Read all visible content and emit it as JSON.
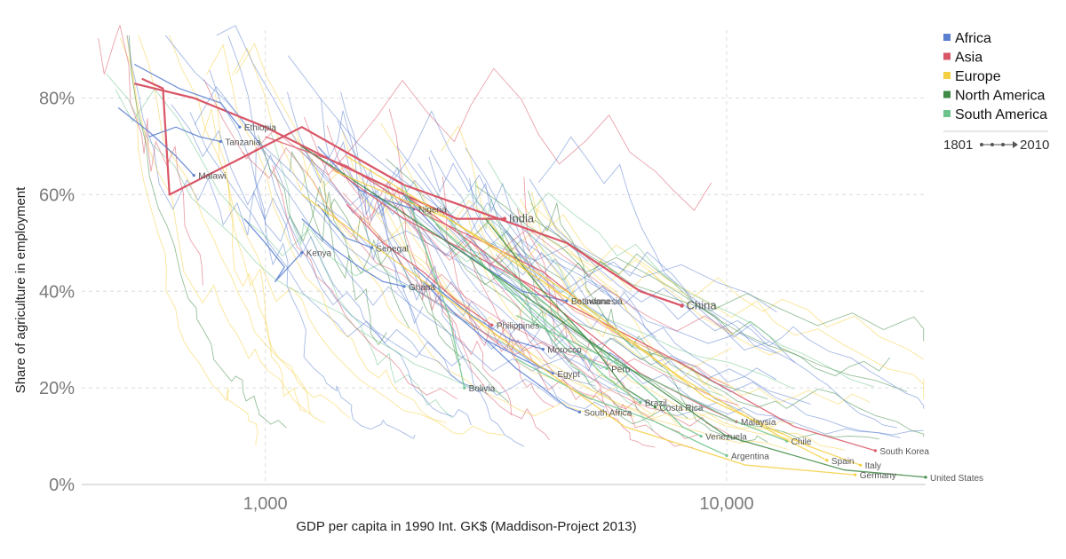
{
  "chart_data": {
    "type": "line",
    "xlabel": "GDP per capita in 1990 Int. GK$ (Maddison-Project 2013)",
    "ylabel": "Share of agriculture in employment",
    "xscale": "log",
    "xlim": [
      400,
      27000
    ],
    "ylim": [
      0,
      0.97
    ],
    "grid": true,
    "x_ticks": [
      {
        "value": 1000,
        "label": "1,000"
      },
      {
        "value": 10000,
        "label": "10,000"
      }
    ],
    "y_ticks": [
      {
        "value": 0,
        "label": "0%"
      },
      {
        "value": 0.2,
        "label": "20%"
      },
      {
        "value": 0.4,
        "label": "40%"
      },
      {
        "value": 0.6,
        "label": "60%"
      },
      {
        "value": 0.8,
        "label": "80%"
      }
    ],
    "legend_position": "top-right",
    "legend": [
      {
        "name": "Africa",
        "color": "#5b7fcf"
      },
      {
        "name": "Asia",
        "color": "#d95667"
      },
      {
        "name": "Europe",
        "color": "#f5cf42"
      },
      {
        "name": "North America",
        "color": "#3f8a45"
      },
      {
        "name": "South America",
        "color": "#6cc48c"
      }
    ],
    "time_range": {
      "start": "1801",
      "end": "2010"
    },
    "series": [
      {
        "name": "India",
        "region": "Asia",
        "x": [
          520,
          700,
          1000,
          1400,
          2000,
          2600,
          3300
        ],
        "y": [
          0.83,
          0.8,
          0.74,
          0.67,
          0.6,
          0.55,
          0.55
        ]
      },
      {
        "name": "China",
        "region": "Asia",
        "x": [
          540,
          600,
          620,
          1200,
          2000,
          4500,
          6500,
          8000
        ],
        "y": [
          0.84,
          0.82,
          0.6,
          0.74,
          0.62,
          0.5,
          0.4,
          0.37
        ]
      },
      {
        "name": "Tanzania",
        "region": "Africa",
        "x": [
          560,
          640,
          720,
          800
        ],
        "y": [
          0.72,
          0.74,
          0.72,
          0.71
        ]
      },
      {
        "name": "Malawi",
        "region": "Africa",
        "x": [
          480,
          560,
          640,
          700
        ],
        "y": [
          0.78,
          0.73,
          0.68,
          0.64
        ]
      },
      {
        "name": "Ethiopia",
        "region": "Africa",
        "x": [
          520,
          650,
          800,
          880
        ],
        "y": [
          0.87,
          0.82,
          0.79,
          0.74
        ]
      },
      {
        "name": "Kenya",
        "region": "Africa",
        "x": [
          900,
          1000,
          1100,
          1050,
          1200
        ],
        "y": [
          0.55,
          0.5,
          0.45,
          0.42,
          0.48
        ]
      },
      {
        "name": "Nigeria",
        "region": "Africa",
        "x": [
          1300,
          1450,
          1600,
          1800,
          2100
        ],
        "y": [
          0.7,
          0.65,
          0.61,
          0.59,
          0.57
        ]
      },
      {
        "name": "Senegal",
        "region": "Africa",
        "x": [
          1300,
          1400,
          1500,
          1600,
          1700
        ],
        "y": [
          0.58,
          0.54,
          0.51,
          0.5,
          0.49
        ]
      },
      {
        "name": "Ghana",
        "region": "Africa",
        "x": [
          1200,
          1400,
          1600,
          1800,
          2000
        ],
        "y": [
          0.55,
          0.49,
          0.45,
          0.42,
          0.41
        ]
      },
      {
        "name": "Botswana",
        "region": "Africa",
        "x": [
          2000,
          2500,
          3000,
          3600,
          4500
        ],
        "y": [
          0.6,
          0.5,
          0.45,
          0.4,
          0.38
        ]
      },
      {
        "name": "Morocco",
        "region": "Africa",
        "x": [
          2100,
          2400,
          2800,
          3400,
          4000
        ],
        "y": [
          0.45,
          0.4,
          0.35,
          0.3,
          0.28
        ]
      },
      {
        "name": "Egypt",
        "region": "Africa",
        "x": [
          2200,
          2600,
          3000,
          3600,
          4200
        ],
        "y": [
          0.42,
          0.35,
          0.3,
          0.26,
          0.23
        ]
      },
      {
        "name": "South Africa",
        "region": "Africa",
        "x": [
          3000,
          3500,
          4000,
          4500,
          4800
        ],
        "y": [
          0.3,
          0.24,
          0.2,
          0.16,
          0.15
        ]
      },
      {
        "name": "Indonesia",
        "region": "Asia",
        "x": [
          1000,
          1500,
          2200,
          3000,
          4000,
          4800
        ],
        "y": [
          0.72,
          0.66,
          0.56,
          0.5,
          0.44,
          0.38
        ]
      },
      {
        "name": "Philippines",
        "region": "Asia",
        "x": [
          1500,
          1800,
          2200,
          2600,
          3100
        ],
        "y": [
          0.58,
          0.5,
          0.44,
          0.38,
          0.33
        ]
      },
      {
        "name": "Malaysia",
        "region": "Asia",
        "x": [
          2000,
          3000,
          4500,
          6500,
          9000,
          10500
        ],
        "y": [
          0.6,
          0.48,
          0.35,
          0.23,
          0.16,
          0.13
        ]
      },
      {
        "name": "South Korea",
        "region": "Asia",
        "x": [
          1200,
          2000,
          4000,
          8000,
          14000,
          21000
        ],
        "y": [
          0.7,
          0.55,
          0.4,
          0.25,
          0.12,
          0.07
        ]
      },
      {
        "name": "Bolivia",
        "region": "South America",
        "x": [
          2000,
          2200,
          2500,
          2700
        ],
        "y": [
          0.62,
          0.5,
          0.35,
          0.2
        ]
      },
      {
        "name": "Peru",
        "region": "South America",
        "x": [
          2500,
          3000,
          3800,
          4500,
          5500
        ],
        "y": [
          0.55,
          0.45,
          0.35,
          0.28,
          0.24
        ]
      },
      {
        "name": "Brazil",
        "region": "South America",
        "x": [
          2000,
          3000,
          4500,
          5500,
          6500
        ],
        "y": [
          0.6,
          0.45,
          0.3,
          0.22,
          0.17
        ]
      },
      {
        "name": "Venezuela",
        "region": "South America",
        "x": [
          3000,
          5000,
          7000,
          8000,
          8800
        ],
        "y": [
          0.48,
          0.3,
          0.18,
          0.12,
          0.1
        ]
      },
      {
        "name": "Argentina",
        "region": "South America",
        "x": [
          3500,
          5000,
          7000,
          9000,
          10000
        ],
        "y": [
          0.26,
          0.18,
          0.13,
          0.08,
          0.06
        ]
      },
      {
        "name": "Chile",
        "region": "South America",
        "x": [
          3500,
          5000,
          7500,
          10500,
          13500
        ],
        "y": [
          0.35,
          0.28,
          0.2,
          0.13,
          0.09
        ]
      },
      {
        "name": "Costa Rica",
        "region": "North America",
        "x": [
          3000,
          4000,
          5000,
          6000,
          7000
        ],
        "y": [
          0.55,
          0.4,
          0.3,
          0.2,
          0.16
        ]
      },
      {
        "name": "United States",
        "region": "North America",
        "x": [
          1200,
          2500,
          5000,
          10000,
          18000,
          27000
        ],
        "y": [
          0.7,
          0.5,
          0.3,
          0.1,
          0.03,
          0.015
        ]
      },
      {
        "name": "Spain",
        "region": "Europe",
        "x": [
          1500,
          2500,
          4000,
          8000,
          13000,
          16500
        ],
        "y": [
          0.68,
          0.55,
          0.42,
          0.22,
          0.1,
          0.05
        ]
      },
      {
        "name": "Italy",
        "region": "Europe",
        "x": [
          1400,
          2500,
          4500,
          9000,
          15000,
          19500
        ],
        "y": [
          0.65,
          0.55,
          0.4,
          0.18,
          0.08,
          0.04
        ]
      },
      {
        "name": "Germany",
        "region": "Europe",
        "x": [
          1200,
          2000,
          3500,
          6000,
          11000,
          19000
        ],
        "y": [
          0.6,
          0.45,
          0.28,
          0.12,
          0.04,
          0.02
        ]
      }
    ]
  }
}
